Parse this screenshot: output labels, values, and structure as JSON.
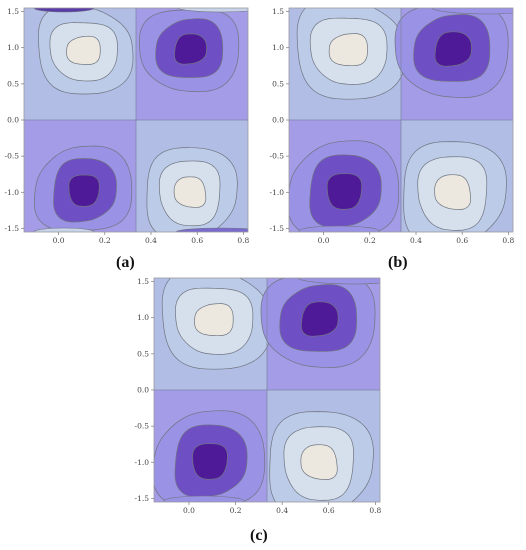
{
  "chart_data": [
    {
      "type": "contour",
      "label": "(a)",
      "xlim": [
        -0.15,
        0.82
      ],
      "ylim": [
        -1.55,
        1.55
      ],
      "x_ticks": [
        "0.0",
        "0.2",
        "0.4",
        "0.6",
        "0.8"
      ],
      "x_tick_values": [
        0.0,
        0.2,
        0.4,
        0.6,
        0.8
      ],
      "y_ticks": [
        "1.5",
        "1.0",
        "0.5",
        "0.0",
        "-0.5",
        "-1.0",
        "-1.5"
      ],
      "y_tick_values": [
        1.5,
        1.0,
        0.5,
        0.0,
        -0.5,
        -1.0,
        -1.5
      ],
      "grid": false,
      "divider": {
        "x": 0.335,
        "y": 0.0
      },
      "extrema": [
        {
          "x": 0.11,
          "y": 0.96,
          "kind": "max",
          "levels": 3
        },
        {
          "x": 0.57,
          "y": 0.98,
          "kind": "min",
          "levels": 3
        },
        {
          "x": 0.11,
          "y": -0.97,
          "kind": "min",
          "levels": 3
        },
        {
          "x": 0.57,
          "y": -1.0,
          "kind": "max",
          "levels": 3
        }
      ]
    },
    {
      "type": "contour",
      "label": "(b)",
      "xlim": [
        -0.15,
        0.82
      ],
      "ylim": [
        -1.55,
        1.55
      ],
      "x_ticks": [
        "0.0",
        "0.2",
        "0.4",
        "0.6",
        "0.8"
      ],
      "x_tick_values": [
        0.0,
        0.2,
        0.4,
        0.6,
        0.8
      ],
      "y_ticks": [
        "1.5",
        "1.0",
        "0.5",
        "0.0",
        "-0.5",
        "-1.0",
        "-1.5"
      ],
      "y_tick_values": [
        1.5,
        1.0,
        0.5,
        0.0,
        -0.5,
        -1.0,
        -1.5
      ],
      "grid": false,
      "divider": {
        "x": 0.335,
        "y": 0.0
      },
      "extrema": [
        {
          "x": 0.11,
          "y": 0.97,
          "kind": "max",
          "levels": 3
        },
        {
          "x": 0.56,
          "y": 0.98,
          "kind": "min",
          "levels": 3
        },
        {
          "x": 0.09,
          "y": -0.98,
          "kind": "min",
          "levels": 3
        },
        {
          "x": 0.56,
          "y": -1.0,
          "kind": "max",
          "levels": 3
        }
      ]
    },
    {
      "type": "contour",
      "label": "(c)",
      "xlim": [
        -0.15,
        0.82
      ],
      "ylim": [
        -1.55,
        1.55
      ],
      "x_ticks": [
        "0.0",
        "0.2",
        "0.4",
        "0.6",
        "0.8"
      ],
      "x_tick_values": [
        0.0,
        0.2,
        0.4,
        0.6,
        0.8
      ],
      "y_ticks": [
        "1.5",
        "1.0",
        "0.5",
        "0.0",
        "-0.5",
        "-1.0",
        "-1.5"
      ],
      "y_tick_values": [
        1.5,
        1.0,
        0.5,
        0.0,
        -0.5,
        -1.0,
        -1.5
      ],
      "grid": false,
      "divider": {
        "x": 0.335,
        "y": 0.0
      },
      "extrema": [
        {
          "x": 0.11,
          "y": 0.97,
          "kind": "max",
          "levels": 3
        },
        {
          "x": 0.56,
          "y": 0.98,
          "kind": "min",
          "levels": 3
        },
        {
          "x": 0.09,
          "y": -0.98,
          "kind": "min",
          "levels": 3
        },
        {
          "x": 0.56,
          "y": -1.0,
          "kind": "max",
          "levels": 3
        }
      ]
    }
  ],
  "colors": {
    "background": "#aab6e2",
    "max_levels": [
      "#bccbe7",
      "#d5e0ec",
      "#ece8df"
    ],
    "min_levels": [
      "#9a92e4",
      "#6f4fc4",
      "#4e1a98"
    ],
    "contour_line": "#6f7480",
    "frame": "#9a9aa0",
    "divider": "#7f86a8"
  }
}
